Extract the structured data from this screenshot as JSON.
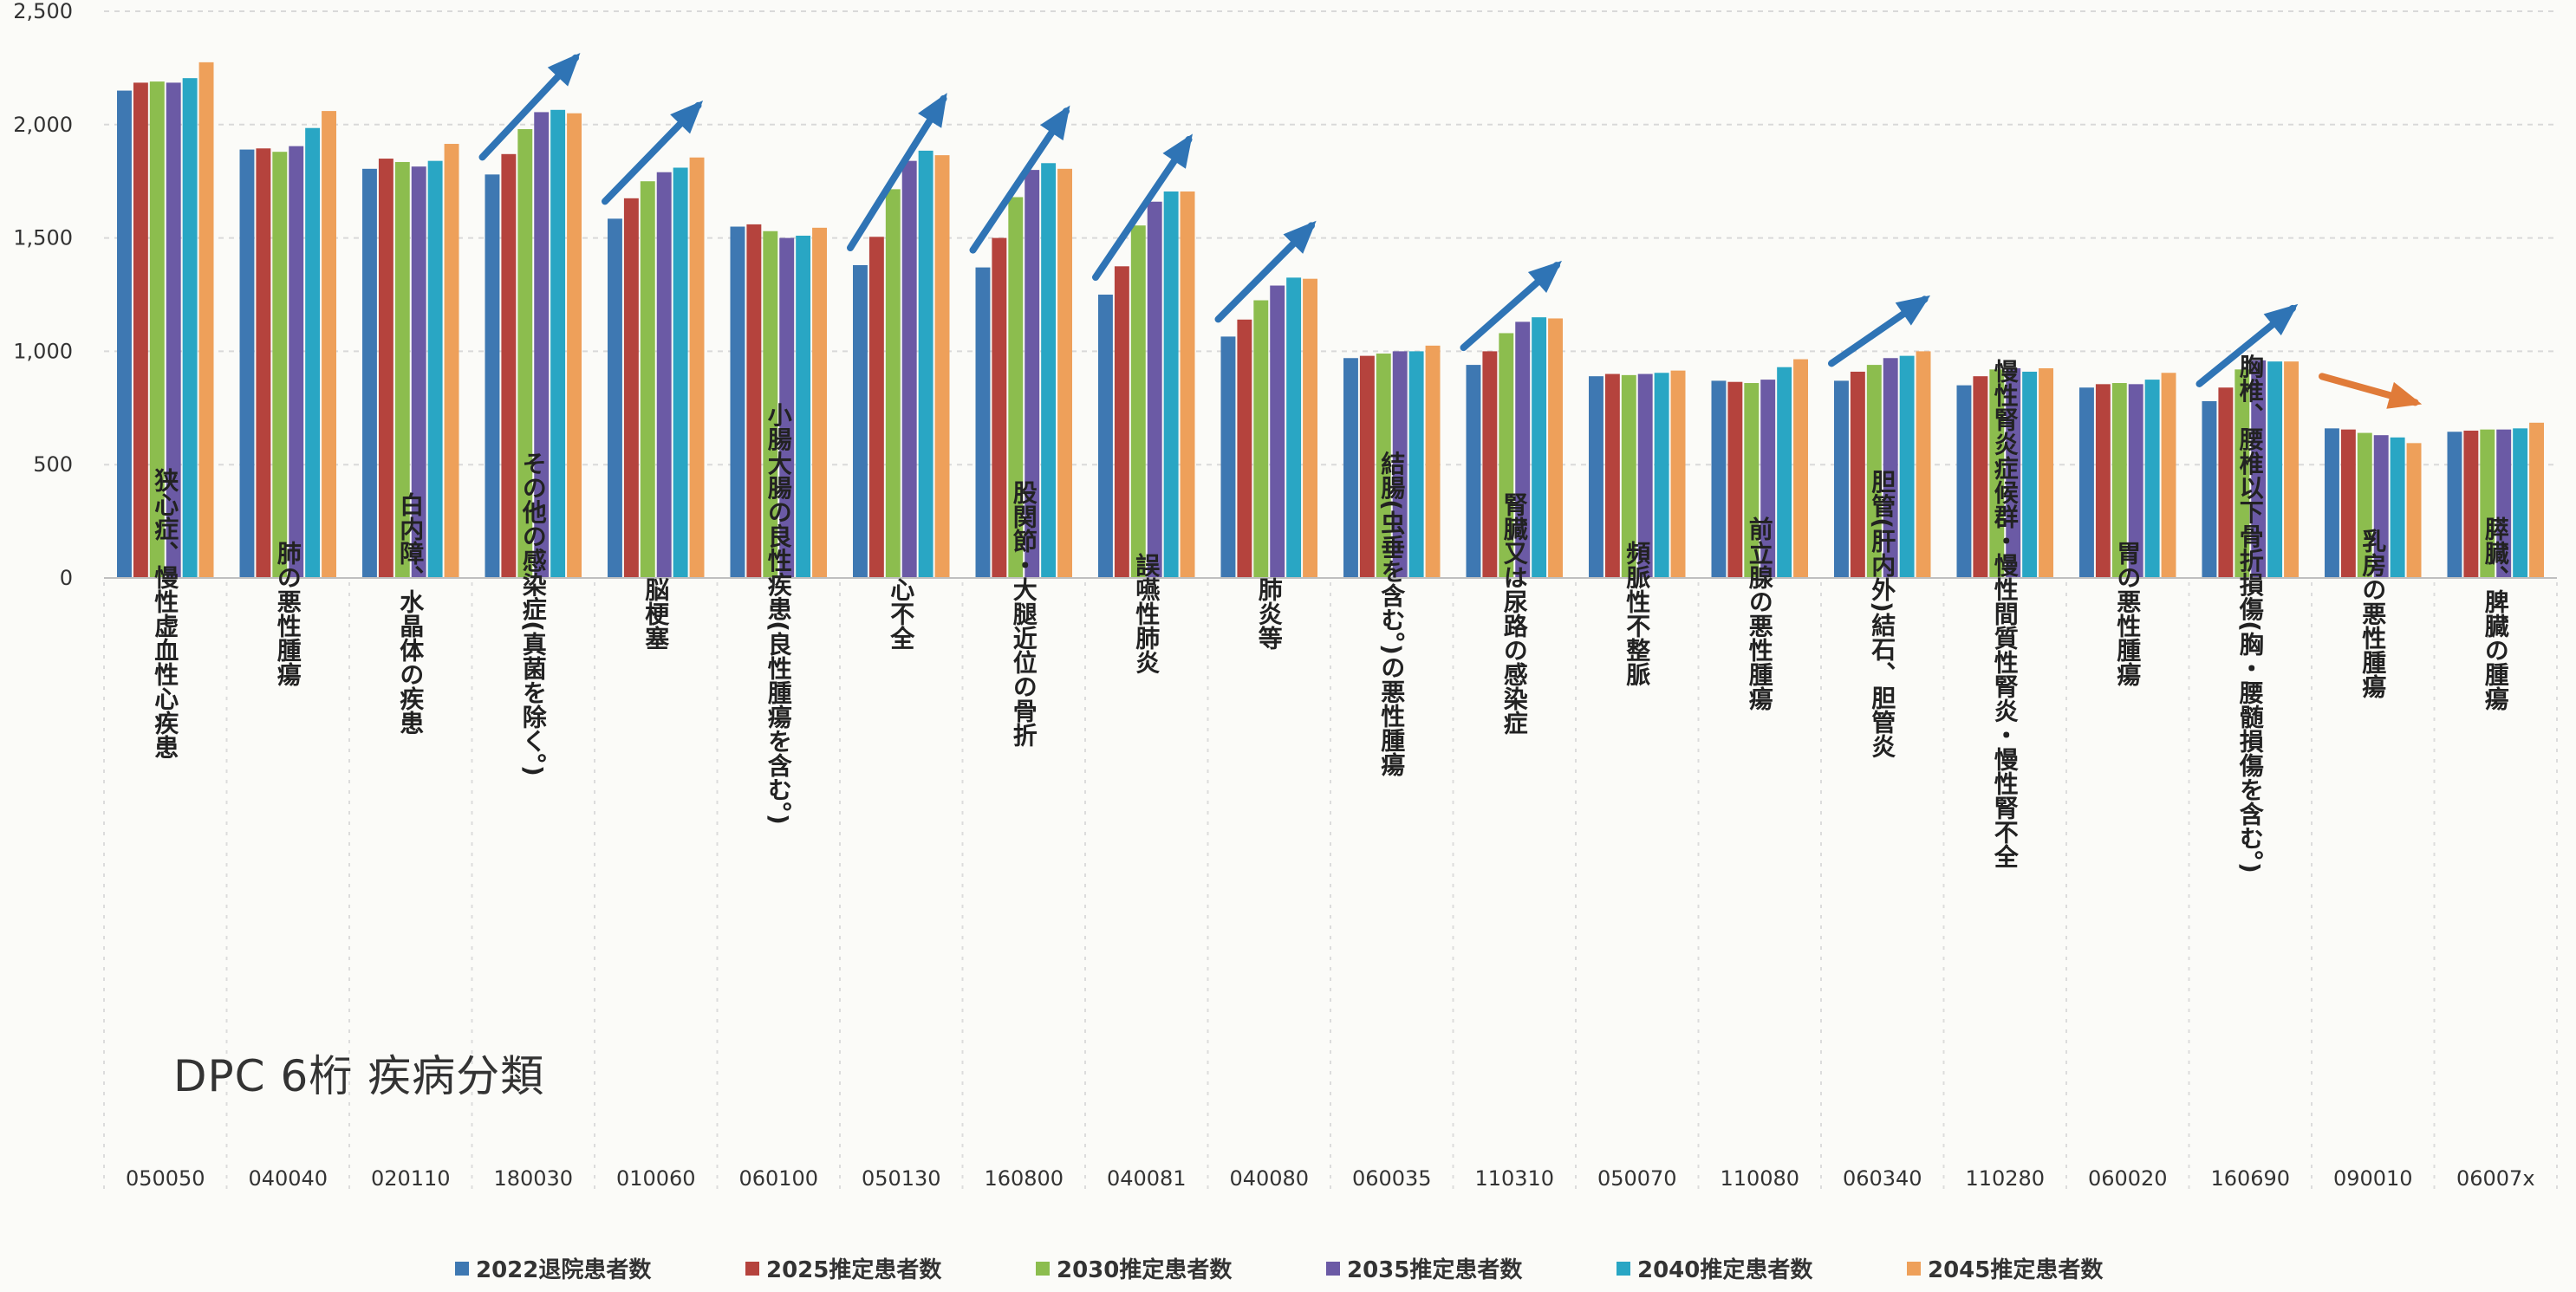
{
  "caption": "DPC 6桁 疾病分類",
  "chart_data": {
    "type": "bar",
    "title": "",
    "xlabel": "",
    "ylabel": "",
    "ylim": [
      0,
      2500
    ],
    "yticks": [
      "0",
      "500",
      "1,000",
      "1,500",
      "2,000",
      "2,500"
    ],
    "ytick_values": [
      0,
      500,
      1000,
      1500,
      2000,
      2500
    ],
    "grid": "dashed-horizontal",
    "legend_position": "bottom-center",
    "categories": [
      {
        "name": "狭心症、慢性虚血性心疾患",
        "code": "050050"
      },
      {
        "name": "肺の悪性腫瘍",
        "code": "040040"
      },
      {
        "name": "白内障、水晶体の疾患",
        "code": "020110"
      },
      {
        "name": "その他の感染症(真菌を除く。)",
        "code": "180030"
      },
      {
        "name": "脳梗塞",
        "code": "010060"
      },
      {
        "name": "小腸大腸の良性疾患(良性腫瘍を含む。)",
        "code": "060100"
      },
      {
        "name": "心不全",
        "code": "050130"
      },
      {
        "name": "股関節・大腿近位の骨折",
        "code": "160800"
      },
      {
        "name": "誤嚥性肺炎",
        "code": "040081"
      },
      {
        "name": "肺炎等",
        "code": "040080"
      },
      {
        "name": "結腸(虫垂を含む。)の悪性腫瘍",
        "code": "060035"
      },
      {
        "name": "腎臓又は尿路の感染症",
        "code": "110310"
      },
      {
        "name": "頻脈性不整脈",
        "code": "050070"
      },
      {
        "name": "前立腺の悪性腫瘍",
        "code": "110080"
      },
      {
        "name": "胆管(肝内外)結石、胆管炎",
        "code": "060340"
      },
      {
        "name": "慢性腎炎症候群・慢性間質性腎炎・慢性腎不全",
        "code": "110280"
      },
      {
        "name": "胃の悪性腫瘍",
        "code": "060020"
      },
      {
        "name": "胸椎、腰椎以下骨折損傷(胸・腰髄損傷を含む。)",
        "code": "160690"
      },
      {
        "name": "乳房の悪性腫瘍",
        "code": "090010"
      },
      {
        "name": "膵臓、脾臓の腫瘍",
        "code": "06007x"
      }
    ],
    "series": [
      {
        "name": "2022退院患者数",
        "color": "#3e78b2",
        "values": [
          2150,
          1890,
          1805,
          1780,
          1585,
          1550,
          1380,
          1370,
          1250,
          1065,
          970,
          940,
          890,
          870,
          870,
          850,
          840,
          780,
          660,
          645
        ]
      },
      {
        "name": "2025推定患者数",
        "color": "#b5433d",
        "values": [
          2185,
          1895,
          1850,
          1870,
          1675,
          1560,
          1505,
          1500,
          1375,
          1140,
          980,
          1000,
          900,
          865,
          910,
          890,
          855,
          840,
          655,
          650
        ]
      },
      {
        "name": "2030推定患者数",
        "color": "#8cbd4e",
        "values": [
          2190,
          1880,
          1835,
          1980,
          1750,
          1530,
          1715,
          1680,
          1555,
          1225,
          990,
          1080,
          895,
          860,
          940,
          920,
          860,
          920,
          640,
          655
        ]
      },
      {
        "name": "2035推定患者数",
        "color": "#6b5aa5",
        "values": [
          2185,
          1905,
          1815,
          2055,
          1790,
          1500,
          1840,
          1800,
          1660,
          1290,
          1000,
          1130,
          900,
          875,
          970,
          925,
          855,
          960,
          630,
          655
        ]
      },
      {
        "name": "2040推定患者数",
        "color": "#29a6c4",
        "values": [
          2205,
          1985,
          1840,
          2065,
          1810,
          1510,
          1885,
          1830,
          1705,
          1325,
          1000,
          1150,
          905,
          930,
          980,
          910,
          875,
          955,
          620,
          660
        ]
      },
      {
        "name": "2045推定患者数",
        "color": "#eea05a",
        "values": [
          2275,
          2060,
          1915,
          2050,
          1855,
          1545,
          1865,
          1805,
          1705,
          1320,
          1025,
          1145,
          915,
          965,
          1000,
          925,
          905,
          955,
          595,
          685
        ]
      }
    ],
    "annotations": [
      {
        "type": "arrow",
        "category_index": 3,
        "direction": "up",
        "color": "#2f74b5"
      },
      {
        "type": "arrow",
        "category_index": 4,
        "direction": "up",
        "color": "#2f74b5"
      },
      {
        "type": "arrow",
        "category_index": 6,
        "direction": "up",
        "color": "#2f74b5"
      },
      {
        "type": "arrow",
        "category_index": 7,
        "direction": "up",
        "color": "#2f74b5"
      },
      {
        "type": "arrow",
        "category_index": 8,
        "direction": "up",
        "color": "#2f74b5"
      },
      {
        "type": "arrow",
        "category_index": 9,
        "direction": "up",
        "color": "#2f74b5"
      },
      {
        "type": "arrow",
        "category_index": 11,
        "direction": "up",
        "color": "#2f74b5"
      },
      {
        "type": "arrow",
        "category_index": 14,
        "direction": "up",
        "color": "#2f74b5"
      },
      {
        "type": "arrow",
        "category_index": 17,
        "direction": "up",
        "color": "#2f74b5"
      },
      {
        "type": "arrow",
        "category_index": 18,
        "direction": "down",
        "color": "#e07b39"
      }
    ]
  }
}
